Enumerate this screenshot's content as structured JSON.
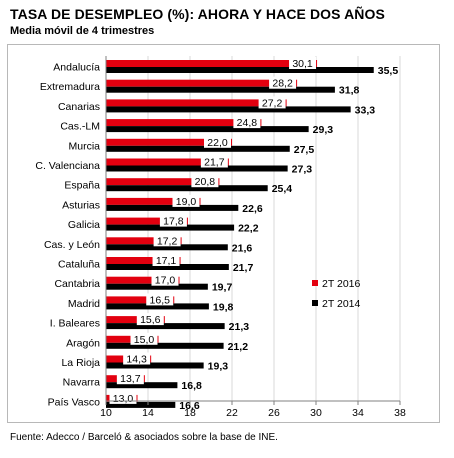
{
  "title": "TASA DE DESEMPLEO (%): AHORA Y HACE DOS AÑOS",
  "subtitle": "Media móvil de 4 trimestres",
  "source": "Fuente: Adecco / Barceló & asociados sobre la base de INE.",
  "colors": {
    "s2016": "#e3000f",
    "s2014": "#000000",
    "axis": "#808080",
    "frame": "#b8b8b8"
  },
  "chart_data": {
    "type": "bar",
    "orientation": "horizontal",
    "title": "TASA DE DESEMPLEO (%): AHORA Y HACE DOS AÑOS",
    "subtitle": "Media móvil de 4 trimestres",
    "categories": [
      "Andalucía",
      "Extremadura",
      "Canarias",
      "Cas.-LM",
      "Murcia",
      "C. Valenciana",
      "España",
      "Asturias",
      "Galicia",
      "Cas. y León",
      "Cataluña",
      "Cantabria",
      "Madrid",
      "I. Baleares",
      "Aragón",
      "La Rioja",
      "Navarra",
      "País Vasco"
    ],
    "series": [
      {
        "name": "2T 2016",
        "values": [
          30.1,
          28.2,
          27.2,
          24.8,
          22.0,
          21.7,
          20.8,
          19.0,
          17.8,
          17.2,
          17.1,
          17.0,
          16.5,
          15.6,
          15.0,
          14.3,
          13.7,
          13.0
        ],
        "labels": [
          "30,1",
          "28,2",
          "27,2",
          "24,8",
          "22,0",
          "21,7",
          "20,8",
          "19,0",
          "17,8",
          "17,2",
          "17,1",
          "17,0",
          "16,5",
          "15,6",
          "15,0",
          "14,3",
          "13,7",
          "13,0"
        ]
      },
      {
        "name": "2T 2014",
        "values": [
          35.5,
          31.8,
          33.3,
          29.3,
          27.5,
          27.3,
          25.4,
          22.6,
          22.2,
          21.6,
          21.7,
          19.7,
          19.8,
          21.3,
          21.2,
          19.3,
          16.8,
          16.6
        ],
        "labels": [
          "35,5",
          "31,8",
          "33,3",
          "29,3",
          "27,5",
          "27,3",
          "25,4",
          "22,6",
          "22,2",
          "21,6",
          "21,7",
          "19,7",
          "19,8",
          "21,3",
          "21,2",
          "19,3",
          "16,8",
          "16,6"
        ]
      }
    ],
    "xlim": [
      10,
      38
    ],
    "xticks": [
      10,
      14,
      18,
      22,
      26,
      30,
      34,
      38
    ],
    "grid": true,
    "legend": "right"
  }
}
